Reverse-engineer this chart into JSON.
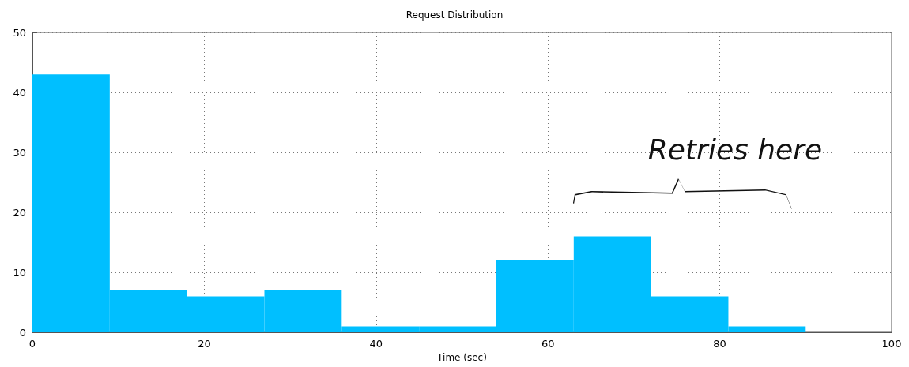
{
  "chart_data": {
    "type": "histogram",
    "title": "Request Distribution",
    "xlabel": "Time (sec)",
    "bins": [
      0,
      9,
      18,
      27,
      36,
      45,
      54,
      63,
      72,
      81,
      90
    ],
    "values": [
      43,
      7,
      6,
      7,
      1,
      1,
      12,
      16,
      6,
      1
    ],
    "color": "#00bfff",
    "xlim": [
      0,
      100
    ],
    "xticks": [
      0,
      20,
      40,
      60,
      80,
      100
    ],
    "ylim": [
      0,
      50
    ],
    "yticks": [
      0,
      10,
      20,
      30,
      40,
      50
    ],
    "grid": true,
    "annotations": [
      "Retries here"
    ]
  }
}
